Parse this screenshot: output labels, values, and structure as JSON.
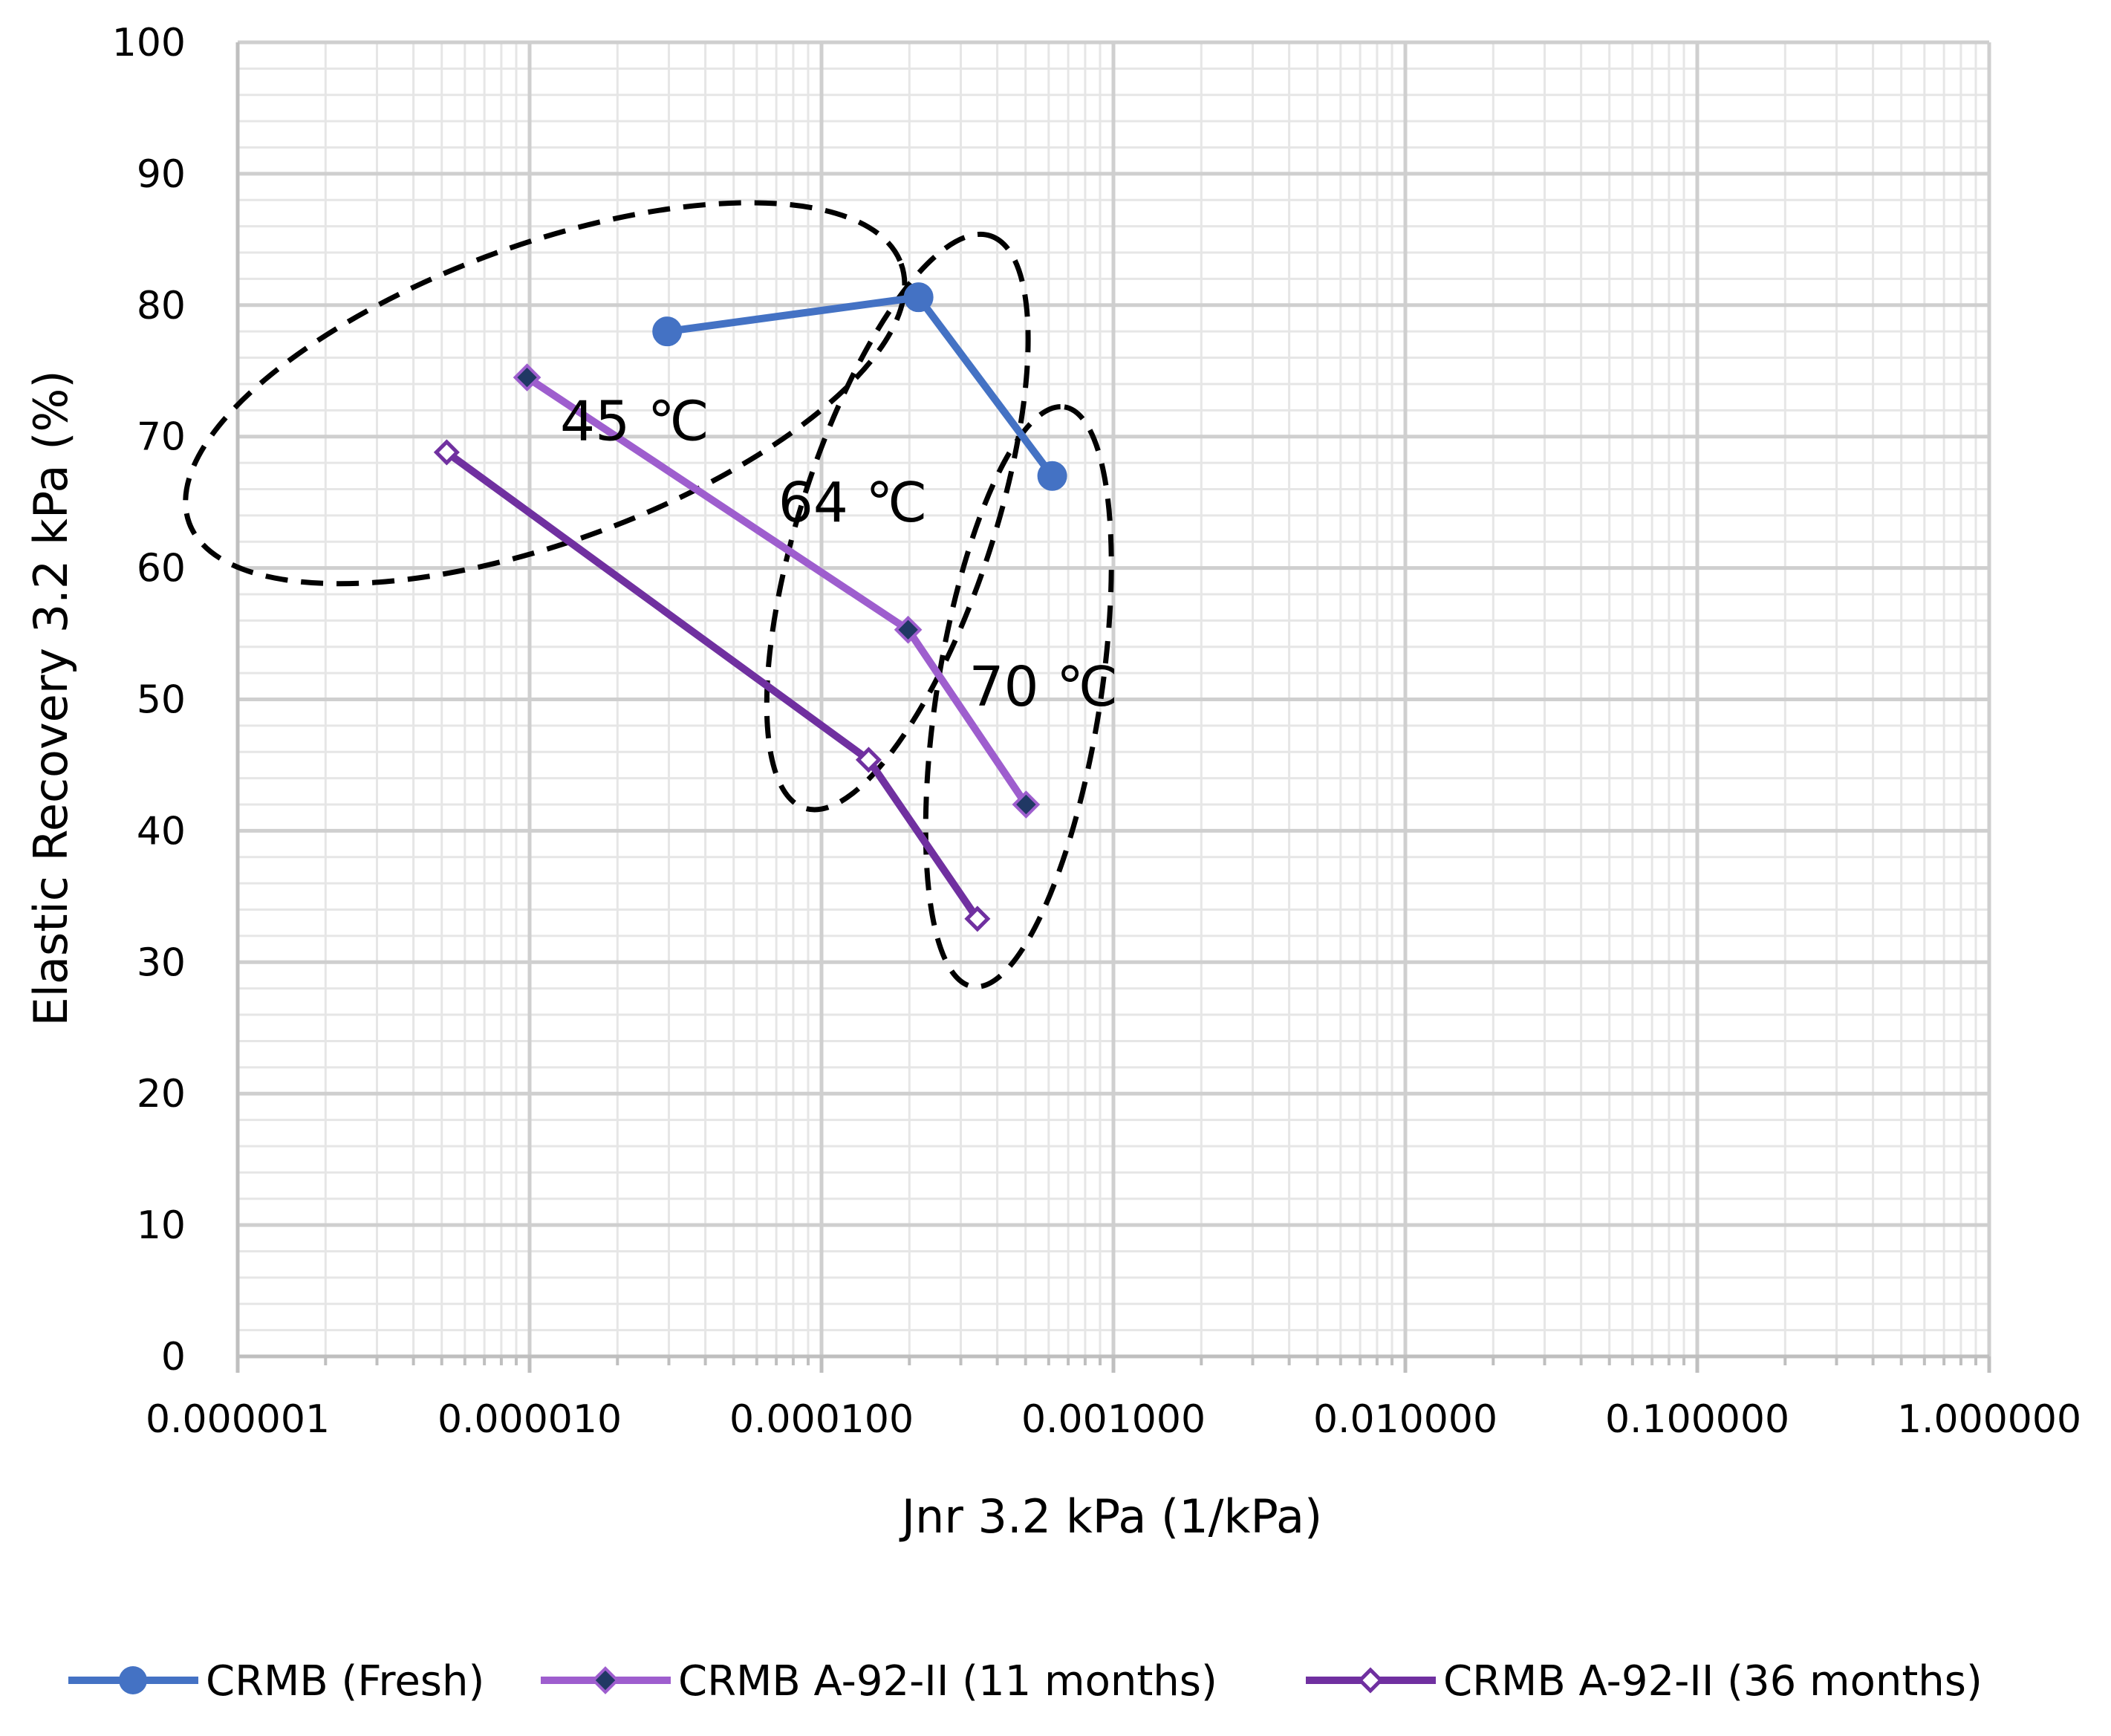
{
  "chart_data": {
    "type": "scatter",
    "title": "",
    "xlabel": "Jnr 3.2 kPa (1/kPa)",
    "ylabel": "Elastic Recovery 3.2 kPa (%)",
    "x_scale": "log",
    "xlim": [
      1e-06,
      1.0
    ],
    "ylim": [
      0,
      100
    ],
    "x_ticks": [
      "0.000001",
      "0.000010",
      "0.000100",
      "0.001000",
      "0.010000",
      "0.100000",
      "1.000000"
    ],
    "y_ticks": [
      "0",
      "10",
      "20",
      "30",
      "40",
      "50",
      "60",
      "70",
      "80",
      "90",
      "100"
    ],
    "grid": true,
    "legend_position": "bottom",
    "series": [
      {
        "name": "CRMB (Fresh)",
        "color": "#4472C4",
        "marker": "circle",
        "x": [
          2.96e-05,
          0.000215,
          0.000617
        ],
        "y": [
          78,
          80.6,
          67
        ]
      },
      {
        "name": "CRMB A-92-II  (11 months)",
        "color": "#9E5ECE",
        "marker": "diamond-filled",
        "x": [
          9.8e-06,
          0.000198,
          0.000502
        ],
        "y": [
          74.5,
          55.3,
          42
        ]
      },
      {
        "name": "CRMB A-92-II  (36 months)",
        "color": "#7030A0",
        "marker": "diamond-open",
        "x": [
          5.2e-06,
          0.000145,
          0.000342
        ],
        "y": [
          68.8,
          45.4,
          33.3
        ]
      }
    ],
    "annotations": [
      {
        "text": "45 ℃",
        "x": 2.29e-05,
        "y": 71.2
      },
      {
        "text": "64 ℃",
        "x": 0.000128,
        "y": 65
      },
      {
        "text": "70 ℃",
        "x": 0.000576,
        "y": 51
      }
    ]
  }
}
